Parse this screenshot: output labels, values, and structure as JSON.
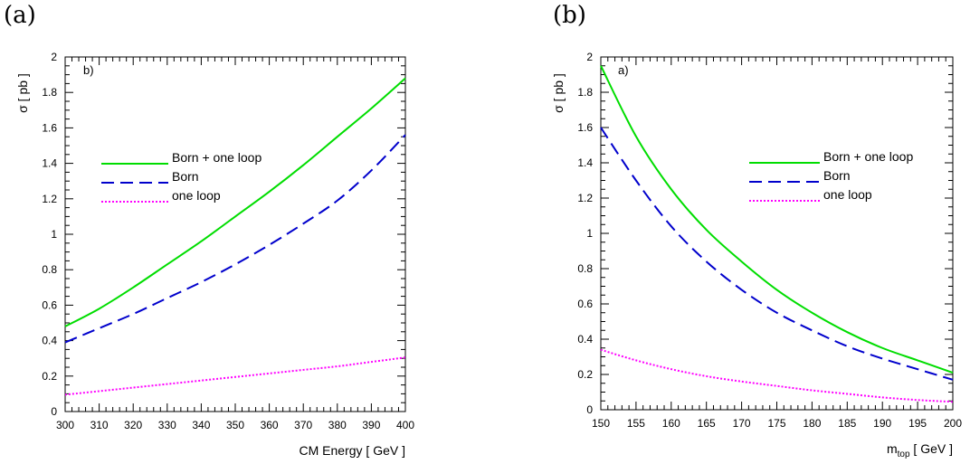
{
  "panels": [
    {
      "label": "(a)"
    },
    {
      "label": "(b)"
    }
  ],
  "chart_data": [
    {
      "type": "line",
      "tag": "b)",
      "xlabel": "CM Energy [ GeV ]",
      "ylabel": "σ [ pb ]",
      "xlim": [
        300,
        400
      ],
      "ylim": [
        0,
        2
      ],
      "xticks": [
        300,
        310,
        320,
        330,
        340,
        350,
        360,
        370,
        380,
        390,
        400
      ],
      "yticks": [
        "0",
        "0.2",
        "0.4",
        "0.6",
        "0.8",
        "1",
        "1.2",
        "1.4",
        "1.6",
        "1.8",
        "2"
      ],
      "legend_position": "middle-left",
      "series": [
        {
          "name": "Born + one loop",
          "color": "#00dd00",
          "style": "solid",
          "x": [
            300,
            310,
            320,
            330,
            340,
            350,
            360,
            370,
            380,
            390,
            400
          ],
          "y": [
            0.48,
            0.58,
            0.7,
            0.83,
            0.96,
            1.1,
            1.24,
            1.39,
            1.55,
            1.71,
            1.88
          ]
        },
        {
          "name": "Born",
          "color": "#0000cc",
          "style": "dashed",
          "x": [
            300,
            310,
            320,
            330,
            340,
            350,
            360,
            370,
            380,
            390,
            400
          ],
          "y": [
            0.39,
            0.47,
            0.55,
            0.64,
            0.73,
            0.83,
            0.94,
            1.06,
            1.19,
            1.36,
            1.56
          ]
        },
        {
          "name": "one loop",
          "color": "#ff00ff",
          "style": "dotted",
          "x": [
            300,
            310,
            320,
            330,
            340,
            350,
            360,
            370,
            380,
            390,
            400
          ],
          "y": [
            0.095,
            0.115,
            0.135,
            0.155,
            0.175,
            0.195,
            0.215,
            0.235,
            0.255,
            0.28,
            0.305
          ]
        }
      ]
    },
    {
      "type": "line",
      "tag": "a)",
      "xlabel": "m",
      "xlabel_sub": "top",
      "xlabel_suffix": " [ GeV ]",
      "ylabel": "σ [ pb ]",
      "xlim": [
        150,
        200
      ],
      "ylim": [
        0,
        2
      ],
      "xticks": [
        150,
        155,
        160,
        165,
        170,
        175,
        180,
        185,
        190,
        195,
        200
      ],
      "yticks": [
        "0",
        "0.2",
        "0.4",
        "0.6",
        "0.8",
        "1",
        "1.2",
        "1.4",
        "1.6",
        "1.8",
        "2"
      ],
      "legend_position": "top-right",
      "series": [
        {
          "name": "Born + one loop",
          "color": "#00dd00",
          "style": "solid",
          "x": [
            150,
            155,
            160,
            165,
            170,
            175,
            180,
            185,
            190,
            195,
            200
          ],
          "y": [
            1.95,
            1.55,
            1.25,
            1.02,
            0.84,
            0.68,
            0.55,
            0.44,
            0.35,
            0.28,
            0.21
          ]
        },
        {
          "name": "Born",
          "color": "#0000cc",
          "style": "dashed",
          "x": [
            150,
            155,
            160,
            165,
            170,
            175,
            180,
            185,
            190,
            195,
            200
          ],
          "y": [
            1.6,
            1.3,
            1.04,
            0.84,
            0.68,
            0.55,
            0.45,
            0.36,
            0.29,
            0.23,
            0.17
          ]
        },
        {
          "name": "one loop",
          "color": "#ff00ff",
          "style": "dotted",
          "x": [
            150,
            155,
            160,
            165,
            170,
            175,
            180,
            185,
            190,
            195,
            200
          ],
          "y": [
            0.34,
            0.28,
            0.23,
            0.19,
            0.16,
            0.135,
            0.11,
            0.09,
            0.07,
            0.055,
            0.045
          ]
        }
      ]
    }
  ]
}
